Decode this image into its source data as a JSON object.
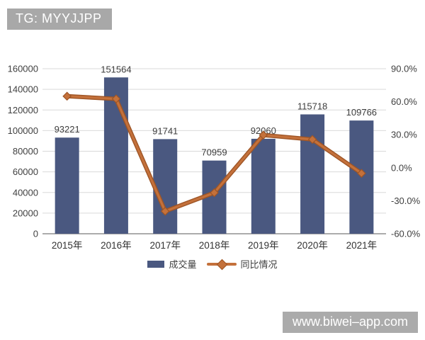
{
  "badge": {
    "text": "TG: MYYJJPP"
  },
  "watermark": {
    "text": "www.biwei–app.com"
  },
  "legend": {
    "bars": "成交量",
    "line": "同比情况"
  },
  "chart_data": {
    "type": "bar",
    "subtype": "bar-line-combo",
    "categories": [
      "2015年",
      "2016年",
      "2017年",
      "2018年",
      "2019年",
      "2020年",
      "2021年"
    ],
    "series": [
      {
        "name": "成交量",
        "type": "bar",
        "axis": "left",
        "values": [
          93221,
          151564,
          91741,
          70959,
          92060,
          115718,
          109766
        ],
        "color": "#4a5880"
      },
      {
        "name": "同比情况",
        "type": "line",
        "axis": "right",
        "values_percent": [
          65.0,
          62.6,
          -39.5,
          -22.7,
          29.7,
          25.7,
          -5.1
        ],
        "color": "#c4713b",
        "edge_color": "#9e5526",
        "marker": "diamond"
      }
    ],
    "left_axis": {
      "min": 0,
      "max": 160000,
      "step": 20000
    },
    "right_axis": {
      "min": -60,
      "max": 90,
      "step": 30,
      "format": "percent_one_decimal"
    },
    "grid": true,
    "gridline_color": "#d9d9d9",
    "baseline_color": "#595959",
    "label_color": "#404040",
    "legend_position": "bottom",
    "title": "",
    "xlabel": "",
    "ylabel": ""
  }
}
